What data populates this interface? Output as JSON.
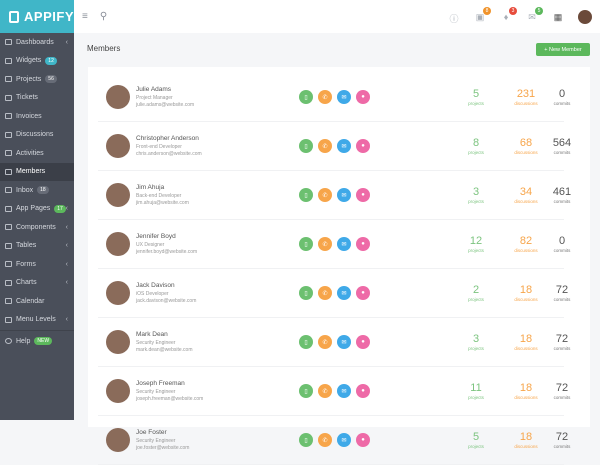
{
  "brand": "APPIFY",
  "sidebar": {
    "items": [
      {
        "label": "Dashboards",
        "icon": "home-icon",
        "chevron": true
      },
      {
        "label": "Widgets",
        "icon": "widget-icon",
        "badge": "12",
        "badge_color": "blue"
      },
      {
        "label": "Projects",
        "icon": "briefcase-icon",
        "badge": "56",
        "badge_color": "gray"
      },
      {
        "label": "Tickets",
        "icon": "ticket-icon"
      },
      {
        "label": "Invoices",
        "icon": "invoice-icon"
      },
      {
        "label": "Discussions",
        "icon": "chat-icon"
      },
      {
        "label": "Activities",
        "icon": "activity-icon"
      },
      {
        "label": "Members",
        "icon": "users-icon",
        "active": true
      },
      {
        "label": "Inbox",
        "icon": "inbox-icon",
        "badge": "18",
        "badge_color": "gray"
      },
      {
        "label": "App Pages",
        "icon": "pages-icon",
        "badge": "17",
        "badge_color": "green",
        "chevron": true
      },
      {
        "label": "Components",
        "icon": "components-icon",
        "chevron": true
      },
      {
        "label": "Tables",
        "icon": "table-icon",
        "chevron": true
      },
      {
        "label": "Forms",
        "icon": "form-icon",
        "chevron": true
      },
      {
        "label": "Charts",
        "icon": "chart-icon",
        "chevron": true
      },
      {
        "label": "Calendar",
        "icon": "calendar-icon"
      },
      {
        "label": "Menu Levels",
        "icon": "sitemap-icon",
        "chevron": true
      }
    ],
    "help": {
      "label": "Help",
      "badge": "NEW"
    }
  },
  "topbar": {
    "badges": {
      "stats": "8",
      "notifications": "3",
      "messages": "5"
    },
    "colors": {
      "stats": "#f0932b",
      "notifications": "#e74c3c",
      "messages": "#5cb85c"
    }
  },
  "page": {
    "title": "Members",
    "new_button": "+ New Member"
  },
  "stat_labels": {
    "projects": "projects",
    "discussions": "discussions",
    "commits": "commits"
  },
  "members": [
    {
      "name": "Julie Adams",
      "role": "Project Manager",
      "email": "julie.adams@website.com",
      "projects": "5",
      "discussions": "231",
      "commits": "0"
    },
    {
      "name": "Christopher Anderson",
      "role": "Front-end Developer",
      "email": "chris.anderson@website.com",
      "projects": "8",
      "discussions": "68",
      "commits": "564"
    },
    {
      "name": "Jim Ahuja",
      "role": "Back-end Developer",
      "email": "jim.ahuja@website.com",
      "projects": "3",
      "discussions": "34",
      "commits": "461"
    },
    {
      "name": "Jennifer Boyd",
      "role": "UX Designer",
      "email": "jennifer.boyd@website.com",
      "projects": "12",
      "discussions": "82",
      "commits": "0"
    },
    {
      "name": "Jack Davison",
      "role": "iOS Developer",
      "email": "jack.davison@website.com",
      "projects": "2",
      "discussions": "18",
      "commits": "72"
    },
    {
      "name": "Mark Dean",
      "role": "Security Engineer",
      "email": "mark.dean@website.com",
      "projects": "3",
      "discussions": "18",
      "commits": "72"
    },
    {
      "name": "Joseph Freeman",
      "role": "Security Engineer",
      "email": "joseph.freeman@website.com",
      "projects": "11",
      "discussions": "18",
      "commits": "72"
    },
    {
      "name": "Joe Foster",
      "role": "Security Engineer",
      "email": "joe.foster@website.com",
      "projects": "5",
      "discussions": "18",
      "commits": "72"
    }
  ],
  "action_colors": {
    "chat": "#6cc070",
    "phone": "#f7a54a",
    "email": "#3fa9e8",
    "location": "#ee6aa7"
  }
}
